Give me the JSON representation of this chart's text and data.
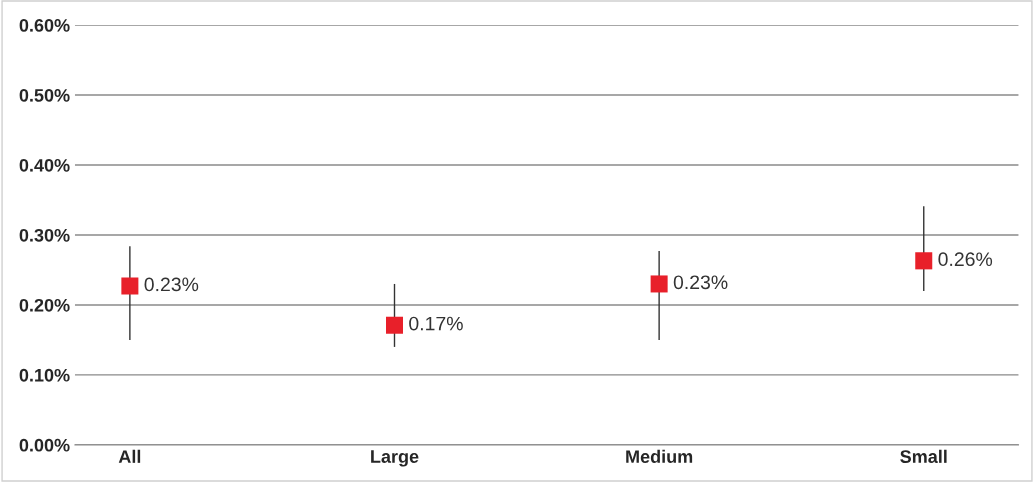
{
  "chart_data": {
    "type": "scatter",
    "categories": [
      "All",
      "Large",
      "Medium",
      "Small"
    ],
    "values": [
      0.227,
      0.171,
      0.23,
      0.263
    ],
    "value_labels": [
      "0.23%",
      "0.17%",
      "0.23%",
      "0.26%"
    ],
    "errors": [
      [
        0.15,
        0.284
      ],
      [
        0.14,
        0.23
      ],
      [
        0.15,
        0.277
      ],
      [
        0.22,
        0.341
      ]
    ],
    "color": "#e8202a",
    "marker": "square",
    "ylim": [
      0,
      0.6
    ],
    "yticks": [
      {
        "value": 0,
        "label": "0.00%"
      },
      {
        "value": 0.1,
        "label": "0.10%"
      },
      {
        "value": 0.2,
        "label": "0.20%"
      },
      {
        "value": 0.3,
        "label": "0.30%"
      },
      {
        "value": 0.4,
        "label": "0.40%"
      },
      {
        "value": 0.5,
        "label": "0.50%"
      },
      {
        "value": 0.6,
        "label": "0.60%"
      }
    ],
    "grid": "y",
    "legend": false
  }
}
